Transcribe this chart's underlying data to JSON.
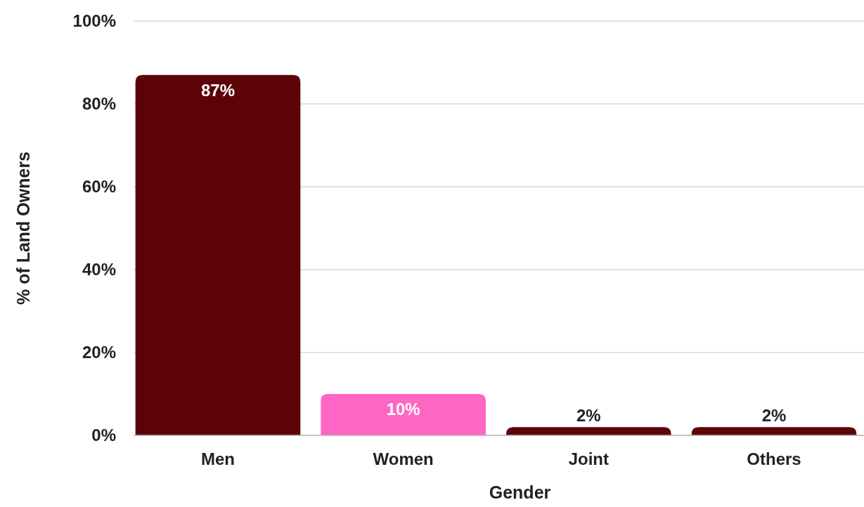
{
  "chart_data": {
    "type": "bar",
    "xlabel": "Gender",
    "ylabel": "% of Land Owners",
    "categories": [
      "Men",
      "Women",
      "Joint",
      "Others"
    ],
    "values": [
      87,
      10,
      2,
      2
    ],
    "colors": [
      "#5c0309",
      "#ff66c4",
      "#5c0309",
      "#5c0309"
    ],
    "value_labels": [
      "87%",
      "10%",
      "2%",
      "2%"
    ],
    "ylim": [
      0,
      100
    ],
    "yticks": [
      {
        "value": 0,
        "label": "0%"
      },
      {
        "value": 20,
        "label": "20%"
      },
      {
        "value": 40,
        "label": "40%"
      },
      {
        "value": 60,
        "label": "60%"
      },
      {
        "value": 80,
        "label": "80%"
      },
      {
        "value": 100,
        "label": "100%"
      }
    ],
    "grid": "y"
  }
}
